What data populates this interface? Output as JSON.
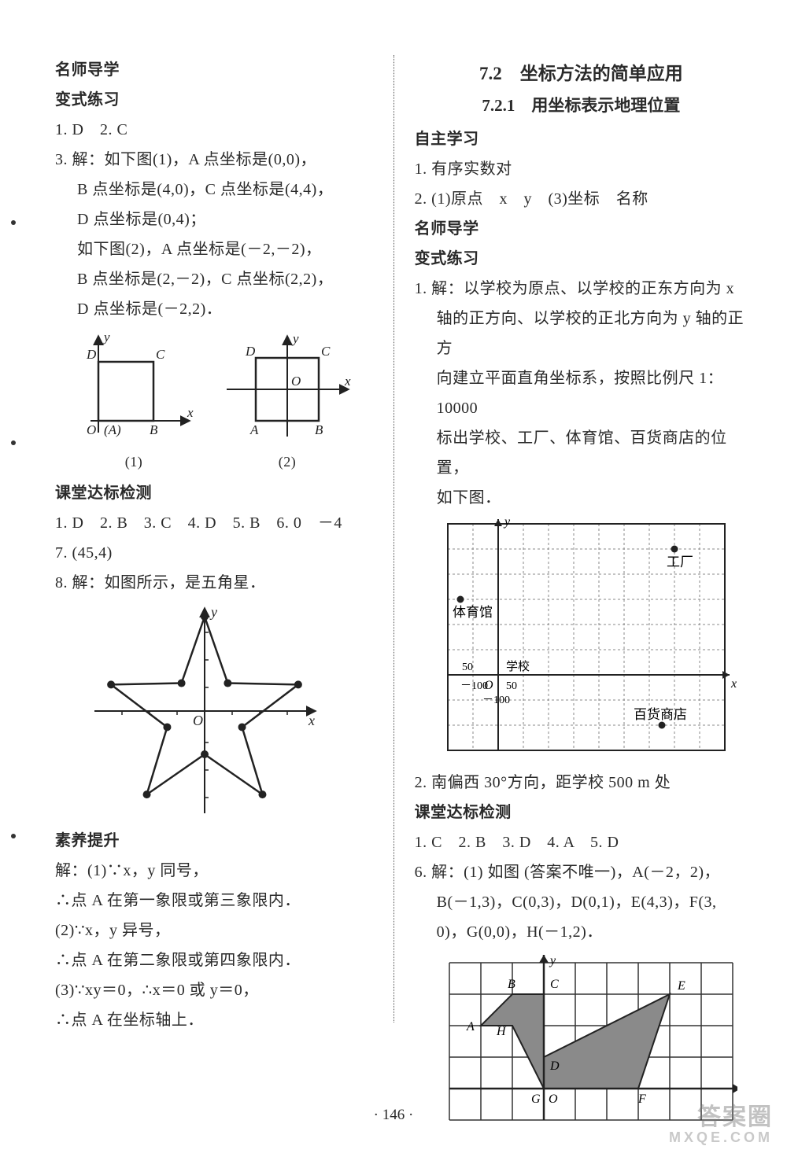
{
  "left": {
    "h1": "名师导学",
    "h2": "变式练习",
    "a1": "1. D　2. C",
    "a3_lead": "3. 解：如下图(1)，A 点坐标是(0,0)，",
    "a3_b": "B 点坐标是(4,0)，C 点坐标是(4,4)，",
    "a3_d": "D 点坐标是(0,4)；",
    "a3_lead2": "如下图(2)，A 点坐标是(－2,－2)，",
    "a3_b2": "B 点坐标是(2,－2)，C 点坐标(2,2)，",
    "a3_d2": "D 点坐标是(－2,2)．",
    "fig1_caption": "(1)",
    "fig2_caption": "(2)",
    "h3": "课堂达标检测",
    "ans_row": "1. D　2. B　3. C　4. D　5. B　6. 0　－4",
    "ans7": "7. (45,4)",
    "ans8": "8. 解：如图所示，是五角星．",
    "h4": "素养提升",
    "s1": "解：(1)∵x，y 同号，",
    "s2": "∴点 A 在第一象限或第三象限内．",
    "s3": "(2)∵x，y 异号，",
    "s4": "∴点 A 在第二象限或第四象限内．",
    "s5": "(3)∵xy＝0，∴x＝0 或 y＝0，",
    "s6": "∴点 A 在坐标轴上．",
    "diagram1": {
      "labels": {
        "O": "O",
        "A": "(A)",
        "B": "B",
        "C": "C",
        "D": "D",
        "x": "x",
        "y": "y"
      },
      "square_side": 60,
      "axis_color": "#222"
    },
    "diagram2": {
      "labels": {
        "O": "O",
        "A": "A",
        "B": "B",
        "C": "C",
        "D": "D",
        "x": "x",
        "y": "y"
      },
      "axis_color": "#222"
    },
    "star": {
      "labels": {
        "O": "O",
        "x": "x",
        "y": "y"
      },
      "point_radius": 5,
      "line_width": 2,
      "color": "#222"
    }
  },
  "right": {
    "title": "7.2　坐标方法的简单应用",
    "subtitle": "7.2.1　用坐标表示地理位置",
    "h1": "自主学习",
    "r1": "1. 有序实数对",
    "r2": "2. (1)原点　x　y　(3)坐标　名称",
    "h2": "名师导学",
    "h3": "变式练习",
    "p1a": "1. 解：以学校为原点、以学校的正东方向为 x",
    "p1b": "轴的正方向、以学校的正北方向为 y 轴的正方",
    "p1c": "向建立平面直角坐标系，按照比例尺 1：10000",
    "p1d": "标出学校、工厂、体育馆、百货商店的位置，",
    "p1e": "如下图．",
    "grid": {
      "scale_label": "比例尺：1:10000",
      "labels": {
        "y": "y",
        "x": "x",
        "O": "O",
        "school": "学校",
        "factory": "工厂",
        "gym": "体育馆",
        "store": "百货商店",
        "n100": "－100",
        "p100": "－100",
        "p50a": "50",
        "p50b": "50"
      },
      "grid_color": "#888",
      "border_color": "#222",
      "cell": 32,
      "cols": 11,
      "rows": 9,
      "origin_col": 2,
      "origin_row": 6,
      "points": {
        "factory": {
          "col": 9,
          "row": 1
        },
        "gym": {
          "col": 0.5,
          "row": 3
        },
        "store": {
          "col": 8.5,
          "row": 8
        }
      }
    },
    "p2": "2. 南偏西 30°方向，距学校 500 m 处",
    "h4": "课堂达标检测",
    "ans": "1. C　2. B　3. D　4. A　5. D",
    "p6a": "6. 解：(1) 如图 (答案不唯一)，A(－2，2)，",
    "p6b": "B(－1,3)，C(0,3)，D(0,1)，E(4,3)，F(3,",
    "p6c": "0)，G(0,0)，H(－1,2)．",
    "poly": {
      "cell": 40,
      "cols": 9,
      "rows": 5,
      "origin_col": 3,
      "origin_row": 4,
      "labels": {
        "x": "x",
        "y": "y",
        "O": "O",
        "A": "A",
        "B": "B",
        "C": "C",
        "D": "D",
        "E": "E",
        "F": "F",
        "G": "G",
        "H": "H"
      },
      "fill": "#8a8a8a",
      "points": {
        "A": [
          -2,
          2
        ],
        "B": [
          -1,
          3
        ],
        "C": [
          0,
          3
        ],
        "D": [
          0,
          1
        ],
        "E": [
          4,
          3
        ],
        "F": [
          3,
          0
        ],
        "G": [
          0,
          0
        ],
        "H": [
          -1,
          2
        ]
      },
      "path_order": [
        "A",
        "B",
        "C",
        "D",
        "E",
        "F",
        "G",
        "H"
      ]
    }
  },
  "page_number": "· 146 ·",
  "watermark_big": "答案圈",
  "watermark_small": "MXQE.COM"
}
